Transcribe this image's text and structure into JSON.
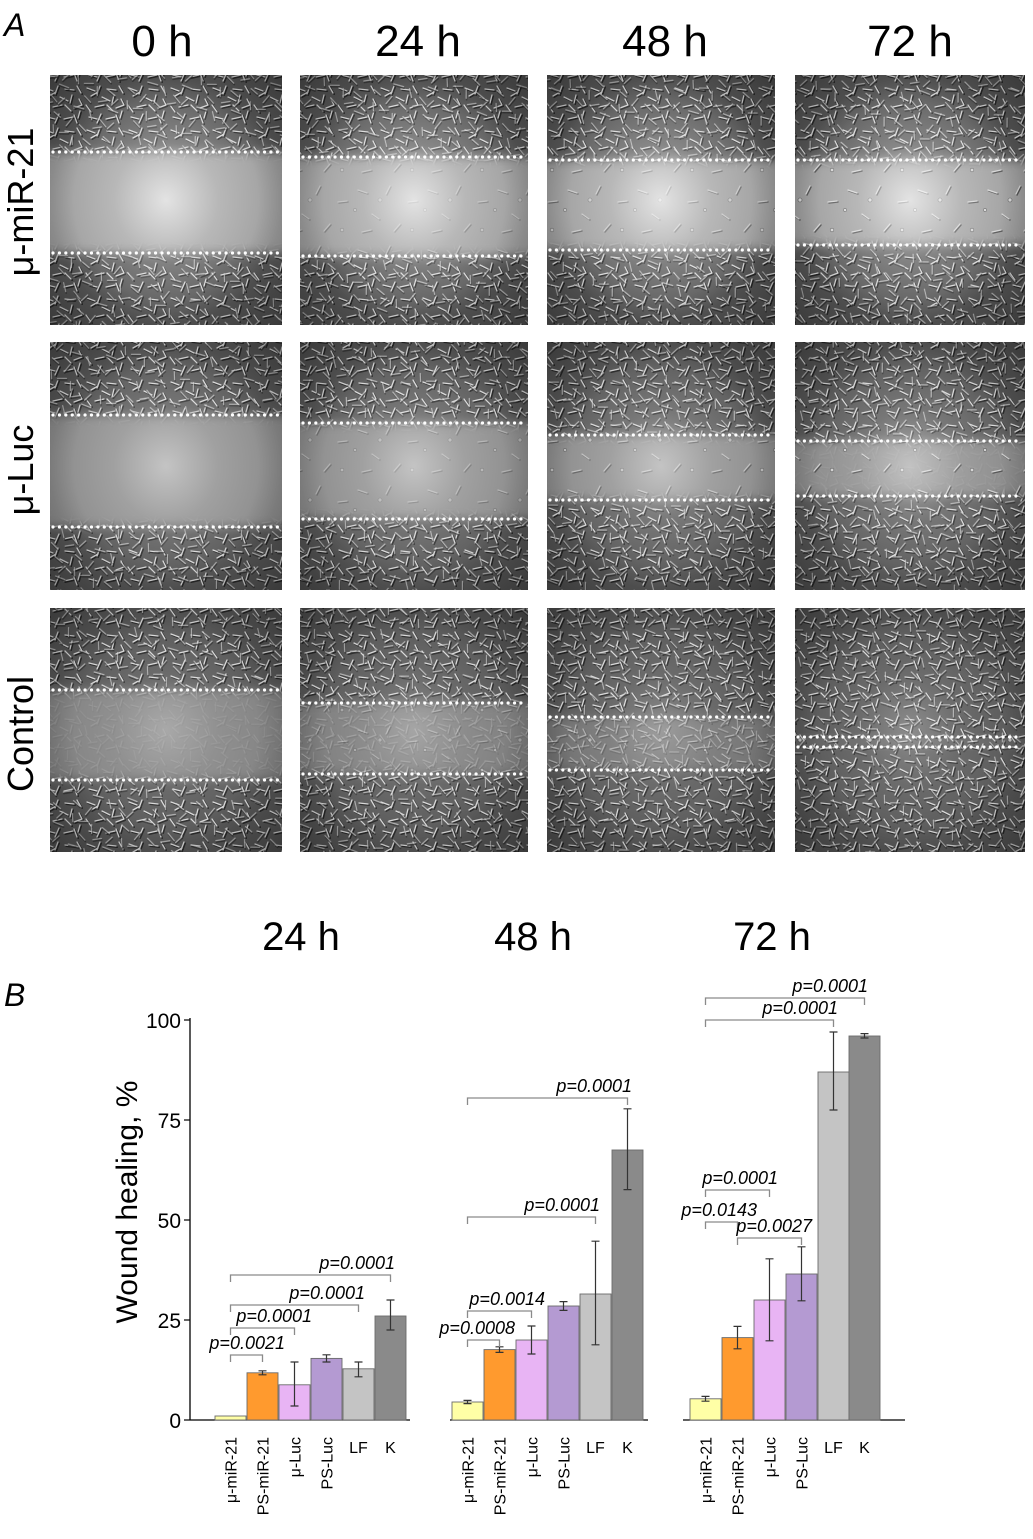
{
  "panel_a": {
    "label": "A",
    "columns": [
      "0 h",
      "24 h",
      "48 h",
      "72 h"
    ],
    "rows": [
      "μ-miR-21",
      "μ-Luc",
      "Control"
    ]
  },
  "panel_b": {
    "label": "B"
  },
  "chart_data": {
    "type": "bar",
    "ylabel": "Wound healing, %",
    "ylim": [
      0,
      100
    ],
    "yticks": [
      0,
      25,
      50,
      75,
      100
    ],
    "grid": false,
    "categories": [
      "μ-miR-21",
      "PS-miR-21",
      "μ-Luc",
      "PS-Luc",
      "LF",
      "K"
    ],
    "colors": [
      "#ffffa6",
      "#ff9a2e",
      "#e8b4f4",
      "#b49ad2",
      "#c4c4c4",
      "#8a8a8a"
    ],
    "groups": [
      {
        "name": "24 h",
        "values": [
          1,
          11.8,
          8.8,
          15.4,
          12.8,
          26
        ],
        "errors": [
          null,
          [
            11.3,
            12.3
          ],
          [
            3.5,
            14.5
          ],
          [
            14.5,
            16.3
          ],
          [
            10.8,
            14.5
          ],
          [
            22.5,
            30
          ]
        ],
        "annotations": [
          {
            "text": "p=0.0021",
            "from": "μ-miR-21",
            "to": "PS-miR-21"
          },
          {
            "text": "p=0.0001",
            "from": "μ-miR-21",
            "to": "μ-Luc"
          },
          {
            "text": "p=0.0001",
            "from": "μ-miR-21",
            "to": "LF"
          },
          {
            "text": "p=0.0001",
            "from": "μ-miR-21",
            "to": "K"
          }
        ]
      },
      {
        "name": "48 h",
        "values": [
          4.5,
          17.6,
          20,
          28.5,
          31.5,
          67.5
        ],
        "errors": [
          [
            4.1,
            4.9
          ],
          [
            16.9,
            18.3
          ],
          [
            16.5,
            23.5
          ],
          [
            27.4,
            29.6
          ],
          [
            18.8,
            44.7
          ],
          [
            57.6,
            77.8
          ]
        ],
        "annotations": [
          {
            "text": "p=0.0008",
            "from": "μ-miR-21",
            "to": "PS-miR-21"
          },
          {
            "text": "p=0.0014",
            "from": "μ-miR-21",
            "to": "μ-Luc"
          },
          {
            "text": "p=0.0001",
            "from": "μ-miR-21",
            "to": "LF"
          },
          {
            "text": "p=0.0001",
            "from": "μ-miR-21",
            "to": "K"
          }
        ]
      },
      {
        "name": "72 h",
        "values": [
          5.3,
          20.6,
          30,
          36.5,
          87,
          96
        ],
        "errors": [
          [
            4.7,
            5.9
          ],
          [
            17.8,
            23.4
          ],
          [
            19.8,
            40.3
          ],
          [
            29.8,
            43.3
          ],
          [
            77.5,
            97
          ],
          [
            95.5,
            96.6
          ]
        ],
        "annotations": [
          {
            "text": "p=0.0001",
            "from": "μ-miR-21",
            "to": "μ-Luc"
          },
          {
            "text": "p=0.0143",
            "from": "μ-miR-21",
            "to": "PS-miR-21"
          },
          {
            "text": "p=0.0027",
            "from": "PS-miR-21",
            "to": "PS-Luc"
          },
          {
            "text": "p=0.0001",
            "from": "μ-miR-21",
            "to": "LF"
          },
          {
            "text": "p=0.0001",
            "from": "μ-miR-21",
            "to": "K"
          }
        ]
      }
    ]
  }
}
